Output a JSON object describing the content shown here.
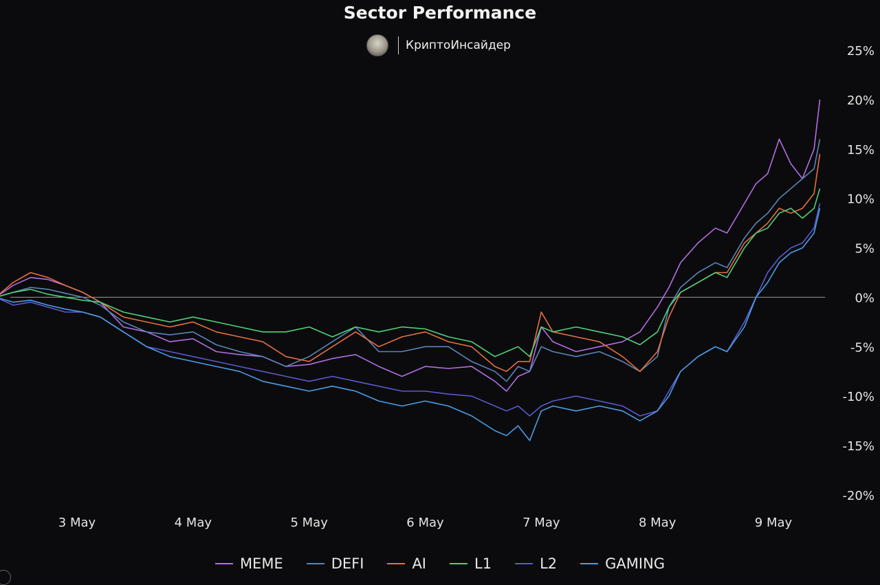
{
  "header": {
    "title": "Sector Performance",
    "brand_name": "КриптоИнсайдер"
  },
  "chart_data": {
    "type": "line",
    "title": "Sector Performance",
    "xlabel": "",
    "ylabel": "",
    "ylim": [
      -20,
      25
    ],
    "yticks": [
      "25%",
      "20%",
      "15%",
      "10%",
      "5%",
      "0%",
      "-5%",
      "-10%",
      "-15%",
      "-20%"
    ],
    "ytick_values": [
      25,
      20,
      15,
      10,
      5,
      0,
      -5,
      -10,
      -15,
      -20
    ],
    "x_range": [
      2.3,
      9.4
    ],
    "xticks": [
      "3 May",
      "4 May",
      "5 May",
      "6 May",
      "7 May",
      "8 May",
      "9 May"
    ],
    "xtick_values": [
      3,
      4,
      5,
      6,
      7,
      8,
      9
    ],
    "zero_line": true,
    "legend_position": "bottom",
    "series": [
      {
        "name": "MEME",
        "color": "#b46ee6",
        "points": [
          [
            2.3,
            0
          ],
          [
            2.45,
            1.2
          ],
          [
            2.6,
            2.0
          ],
          [
            2.75,
            1.8
          ],
          [
            2.9,
            1.2
          ],
          [
            3.05,
            0.5
          ],
          [
            3.2,
            -0.5
          ],
          [
            3.4,
            -3
          ],
          [
            3.6,
            -3.5
          ],
          [
            3.8,
            -4.5
          ],
          [
            4.0,
            -4.2
          ],
          [
            4.2,
            -5.5
          ],
          [
            4.4,
            -5.8
          ],
          [
            4.6,
            -6.0
          ],
          [
            4.8,
            -7.0
          ],
          [
            5.0,
            -6.8
          ],
          [
            5.2,
            -6.2
          ],
          [
            5.4,
            -5.8
          ],
          [
            5.6,
            -7.0
          ],
          [
            5.8,
            -8.0
          ],
          [
            6.0,
            -7.0
          ],
          [
            6.2,
            -7.2
          ],
          [
            6.4,
            -7.0
          ],
          [
            6.6,
            -8.5
          ],
          [
            6.7,
            -9.5
          ],
          [
            6.8,
            -8.0
          ],
          [
            6.9,
            -7.5
          ],
          [
            7.0,
            -3.0
          ],
          [
            7.1,
            -4.5
          ],
          [
            7.3,
            -5.5
          ],
          [
            7.5,
            -5.0
          ],
          [
            7.7,
            -4.5
          ],
          [
            7.85,
            -3.5
          ],
          [
            8.0,
            -1.0
          ],
          [
            8.1,
            1.0
          ],
          [
            8.2,
            3.5
          ],
          [
            8.35,
            5.5
          ],
          [
            8.5,
            7.0
          ],
          [
            8.6,
            6.5
          ],
          [
            8.75,
            9.5
          ],
          [
            8.85,
            11.5
          ],
          [
            8.95,
            12.5
          ],
          [
            9.05,
            16.0
          ],
          [
            9.15,
            13.5
          ],
          [
            9.25,
            12.0
          ],
          [
            9.35,
            15.0
          ],
          [
            9.4,
            20.0
          ]
        ]
      },
      {
        "name": "DEFI",
        "color": "#5b86b8",
        "points": [
          [
            2.3,
            0
          ],
          [
            2.45,
            0.5
          ],
          [
            2.6,
            1.0
          ],
          [
            2.75,
            0.8
          ],
          [
            2.9,
            0.4
          ],
          [
            3.05,
            0
          ],
          [
            3.2,
            -0.8
          ],
          [
            3.4,
            -2.5
          ],
          [
            3.6,
            -3.5
          ],
          [
            3.8,
            -3.8
          ],
          [
            4.0,
            -3.5
          ],
          [
            4.2,
            -4.8
          ],
          [
            4.4,
            -5.5
          ],
          [
            4.6,
            -6.0
          ],
          [
            4.8,
            -7.0
          ],
          [
            5.0,
            -6.0
          ],
          [
            5.2,
            -4.5
          ],
          [
            5.4,
            -3.0
          ],
          [
            5.6,
            -5.5
          ],
          [
            5.8,
            -5.5
          ],
          [
            6.0,
            -5.0
          ],
          [
            6.2,
            -5.0
          ],
          [
            6.4,
            -6.5
          ],
          [
            6.6,
            -7.5
          ],
          [
            6.7,
            -8.5
          ],
          [
            6.8,
            -7.0
          ],
          [
            6.9,
            -7.5
          ],
          [
            7.0,
            -5.0
          ],
          [
            7.1,
            -5.5
          ],
          [
            7.3,
            -6.0
          ],
          [
            7.5,
            -5.5
          ],
          [
            7.7,
            -6.5
          ],
          [
            7.85,
            -7.5
          ],
          [
            8.0,
            -6.0
          ],
          [
            8.1,
            -1.0
          ],
          [
            8.2,
            1.0
          ],
          [
            8.35,
            2.5
          ],
          [
            8.5,
            3.5
          ],
          [
            8.6,
            3.0
          ],
          [
            8.75,
            6.0
          ],
          [
            8.85,
            7.5
          ],
          [
            8.95,
            8.5
          ],
          [
            9.05,
            10.0
          ],
          [
            9.15,
            11.0
          ],
          [
            9.25,
            12.0
          ],
          [
            9.35,
            13.0
          ],
          [
            9.4,
            16.0
          ]
        ]
      },
      {
        "name": "AI",
        "color": "#e8703f",
        "points": [
          [
            2.3,
            0
          ],
          [
            2.45,
            1.5
          ],
          [
            2.6,
            2.5
          ],
          [
            2.75,
            2.0
          ],
          [
            2.9,
            1.2
          ],
          [
            3.05,
            0.5
          ],
          [
            3.2,
            -0.5
          ],
          [
            3.4,
            -2.0
          ],
          [
            3.6,
            -2.5
          ],
          [
            3.8,
            -3.0
          ],
          [
            4.0,
            -2.5
          ],
          [
            4.2,
            -3.5
          ],
          [
            4.4,
            -4.0
          ],
          [
            4.6,
            -4.5
          ],
          [
            4.8,
            -6.0
          ],
          [
            5.0,
            -6.5
          ],
          [
            5.2,
            -5.0
          ],
          [
            5.4,
            -3.5
          ],
          [
            5.6,
            -5.0
          ],
          [
            5.8,
            -4.0
          ],
          [
            6.0,
            -3.5
          ],
          [
            6.2,
            -4.5
          ],
          [
            6.4,
            -5.0
          ],
          [
            6.6,
            -7.0
          ],
          [
            6.7,
            -7.5
          ],
          [
            6.8,
            -6.5
          ],
          [
            6.9,
            -6.5
          ],
          [
            7.0,
            -1.5
          ],
          [
            7.1,
            -3.5
          ],
          [
            7.3,
            -4.0
          ],
          [
            7.5,
            -4.5
          ],
          [
            7.7,
            -6.0
          ],
          [
            7.85,
            -7.5
          ],
          [
            8.0,
            -5.5
          ],
          [
            8.1,
            -2.0
          ],
          [
            8.2,
            0.5
          ],
          [
            8.35,
            1.5
          ],
          [
            8.5,
            2.5
          ],
          [
            8.6,
            2.5
          ],
          [
            8.75,
            5.5
          ],
          [
            8.85,
            6.5
          ],
          [
            8.95,
            7.5
          ],
          [
            9.05,
            9.0
          ],
          [
            9.15,
            8.5
          ],
          [
            9.25,
            9.0
          ],
          [
            9.35,
            10.5
          ],
          [
            9.4,
            14.5
          ]
        ]
      },
      {
        "name": "L1",
        "color": "#4fd27a",
        "points": [
          [
            2.3,
            0
          ],
          [
            2.45,
            0.5
          ],
          [
            2.6,
            0.8
          ],
          [
            2.75,
            0.3
          ],
          [
            2.9,
            0
          ],
          [
            3.05,
            -0.3
          ],
          [
            3.2,
            -0.5
          ],
          [
            3.4,
            -1.5
          ],
          [
            3.6,
            -2.0
          ],
          [
            3.8,
            -2.5
          ],
          [
            4.0,
            -2.0
          ],
          [
            4.2,
            -2.5
          ],
          [
            4.4,
            -3.0
          ],
          [
            4.6,
            -3.5
          ],
          [
            4.8,
            -3.5
          ],
          [
            5.0,
            -3.0
          ],
          [
            5.2,
            -4.0
          ],
          [
            5.4,
            -3.0
          ],
          [
            5.6,
            -3.5
          ],
          [
            5.8,
            -3.0
          ],
          [
            6.0,
            -3.2
          ],
          [
            6.2,
            -4.0
          ],
          [
            6.4,
            -4.5
          ],
          [
            6.6,
            -6.0
          ],
          [
            6.7,
            -5.5
          ],
          [
            6.8,
            -5.0
          ],
          [
            6.9,
            -6.0
          ],
          [
            7.0,
            -3.0
          ],
          [
            7.1,
            -3.5
          ],
          [
            7.3,
            -3.0
          ],
          [
            7.5,
            -3.5
          ],
          [
            7.7,
            -4.0
          ],
          [
            7.85,
            -4.8
          ],
          [
            8.0,
            -3.5
          ],
          [
            8.1,
            -1.0
          ],
          [
            8.2,
            0.5
          ],
          [
            8.35,
            1.5
          ],
          [
            8.5,
            2.5
          ],
          [
            8.6,
            2.0
          ],
          [
            8.75,
            5.0
          ],
          [
            8.85,
            6.5
          ],
          [
            8.95,
            7.0
          ],
          [
            9.05,
            8.5
          ],
          [
            9.15,
            9.0
          ],
          [
            9.25,
            8.0
          ],
          [
            9.35,
            9.0
          ],
          [
            9.4,
            11.0
          ]
        ]
      },
      {
        "name": "L2",
        "color": "#5a5ad0",
        "points": [
          [
            2.3,
            0
          ],
          [
            2.45,
            -0.8
          ],
          [
            2.6,
            -0.5
          ],
          [
            2.75,
            -1.0
          ],
          [
            2.9,
            -1.5
          ],
          [
            3.05,
            -1.5
          ],
          [
            3.2,
            -2.0
          ],
          [
            3.4,
            -3.5
          ],
          [
            3.6,
            -5.0
          ],
          [
            3.8,
            -5.5
          ],
          [
            4.0,
            -6.0
          ],
          [
            4.2,
            -6.5
          ],
          [
            4.4,
            -7.0
          ],
          [
            4.6,
            -7.5
          ],
          [
            4.8,
            -8.0
          ],
          [
            5.0,
            -8.5
          ],
          [
            5.2,
            -8.0
          ],
          [
            5.4,
            -8.5
          ],
          [
            5.6,
            -9.0
          ],
          [
            5.8,
            -9.5
          ],
          [
            6.0,
            -9.5
          ],
          [
            6.2,
            -9.8
          ],
          [
            6.4,
            -10.0
          ],
          [
            6.6,
            -11.0
          ],
          [
            6.7,
            -11.5
          ],
          [
            6.8,
            -11.0
          ],
          [
            6.9,
            -12.0
          ],
          [
            7.0,
            -11.0
          ],
          [
            7.1,
            -10.5
          ],
          [
            7.3,
            -10.0
          ],
          [
            7.5,
            -10.5
          ],
          [
            7.7,
            -11.0
          ],
          [
            7.85,
            -12.0
          ],
          [
            8.0,
            -11.5
          ],
          [
            8.1,
            -9.5
          ],
          [
            8.2,
            -7.5
          ],
          [
            8.35,
            -6.0
          ],
          [
            8.5,
            -5.0
          ],
          [
            8.6,
            -5.5
          ],
          [
            8.75,
            -2.5
          ],
          [
            8.85,
            0
          ],
          [
            8.95,
            2.5
          ],
          [
            9.05,
            4.0
          ],
          [
            9.15,
            5.0
          ],
          [
            9.25,
            5.5
          ],
          [
            9.35,
            7.0
          ],
          [
            9.4,
            9.5
          ]
        ]
      },
      {
        "name": "GAMING",
        "color": "#4a9ee8",
        "points": [
          [
            2.3,
            0
          ],
          [
            2.45,
            -0.5
          ],
          [
            2.6,
            -0.3
          ],
          [
            2.75,
            -0.8
          ],
          [
            2.9,
            -1.2
          ],
          [
            3.05,
            -1.5
          ],
          [
            3.2,
            -2.0
          ],
          [
            3.4,
            -3.5
          ],
          [
            3.6,
            -5.0
          ],
          [
            3.8,
            -6.0
          ],
          [
            4.0,
            -6.5
          ],
          [
            4.2,
            -7.0
          ],
          [
            4.4,
            -7.5
          ],
          [
            4.6,
            -8.5
          ],
          [
            4.8,
            -9.0
          ],
          [
            5.0,
            -9.5
          ],
          [
            5.2,
            -9.0
          ],
          [
            5.4,
            -9.5
          ],
          [
            5.6,
            -10.5
          ],
          [
            5.8,
            -11.0
          ],
          [
            6.0,
            -10.5
          ],
          [
            6.2,
            -11.0
          ],
          [
            6.4,
            -12.0
          ],
          [
            6.6,
            -13.5
          ],
          [
            6.7,
            -14.0
          ],
          [
            6.8,
            -13.0
          ],
          [
            6.9,
            -14.5
          ],
          [
            7.0,
            -11.5
          ],
          [
            7.1,
            -11.0
          ],
          [
            7.3,
            -11.5
          ],
          [
            7.5,
            -11.0
          ],
          [
            7.7,
            -11.5
          ],
          [
            7.85,
            -12.5
          ],
          [
            8.0,
            -11.5
          ],
          [
            8.1,
            -10.0
          ],
          [
            8.2,
            -7.5
          ],
          [
            8.35,
            -6.0
          ],
          [
            8.5,
            -5.0
          ],
          [
            8.6,
            -5.5
          ],
          [
            8.75,
            -3.0
          ],
          [
            8.85,
            0
          ],
          [
            8.95,
            1.5
          ],
          [
            9.05,
            3.5
          ],
          [
            9.15,
            4.5
          ],
          [
            9.25,
            5.0
          ],
          [
            9.35,
            6.5
          ],
          [
            9.4,
            9.0
          ]
        ]
      }
    ]
  }
}
